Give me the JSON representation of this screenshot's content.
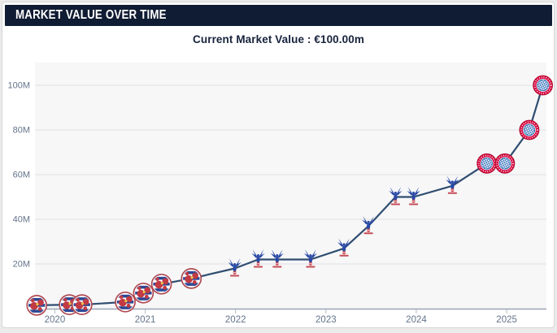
{
  "header": {
    "title": "MARKET VALUE OVER TIME"
  },
  "subtitle": {
    "text": "Current Market Value : €100.00m",
    "current_value": "€100.00m"
  },
  "colors": {
    "banner_bg": "#101c33",
    "banner_text": "#ffffff",
    "subtitle_text": "#17233c",
    "line": "#2f4d70",
    "plot_bg": "#f7f7f8",
    "grid": "#e1e1e4",
    "axis_line": "#9aa5b3",
    "tick": "#b3bdca",
    "axis_text": "#64748b",
    "bayern_red": "#d6033c",
    "bayern_check_blue": "#2f6db8",
    "palace_blue": "#2a49a5",
    "reading_blue": "#2c4795",
    "crest_red": "#c13a44",
    "crest_ring": "#b04a52",
    "crest_gold": "#e8c24a"
  },
  "chart_data": {
    "type": "line",
    "title": "MARKET VALUE OVER TIME",
    "xlabel": "",
    "ylabel": "",
    "grid": true,
    "legend": false,
    "xlim": [
      2019.78,
      2025.44
    ],
    "ylim": [
      0,
      110.2
    ],
    "x_ticks": [
      2020,
      2021,
      2022,
      2023,
      2024,
      2025
    ],
    "x_tick_labels": [
      "2020",
      "2021",
      "2022",
      "2023",
      "2024",
      "2025"
    ],
    "y_ticks": [
      20,
      40,
      60,
      80,
      100
    ],
    "y_tick_labels": [
      "20M",
      "40M",
      "60M",
      "80M",
      "100M"
    ],
    "marker_icons": [
      "reading-crest",
      "crystal-palace-crest",
      "bayern-munich-crest"
    ],
    "x": [
      2019.8,
      2020.16,
      2020.3,
      2020.78,
      2020.98,
      2021.18,
      2021.51,
      2021.99,
      2022.25,
      2022.46,
      2022.83,
      2023.2,
      2023.47,
      2023.77,
      2023.97,
      2024.4,
      2024.78,
      2024.98,
      2025.25,
      2025.4
    ],
    "values": [
      1.5,
      1.8,
      1.8,
      3,
      7,
      11,
      13.5,
      18,
      22,
      22,
      22,
      27,
      37,
      50,
      50,
      55,
      65,
      65,
      80,
      100
    ],
    "clubs": [
      "reading",
      "reading",
      "reading",
      "reading",
      "reading",
      "reading",
      "reading",
      "palace",
      "palace",
      "palace",
      "palace",
      "palace",
      "palace",
      "palace",
      "palace",
      "palace",
      "bayern",
      "bayern",
      "bayern",
      "bayern"
    ]
  }
}
